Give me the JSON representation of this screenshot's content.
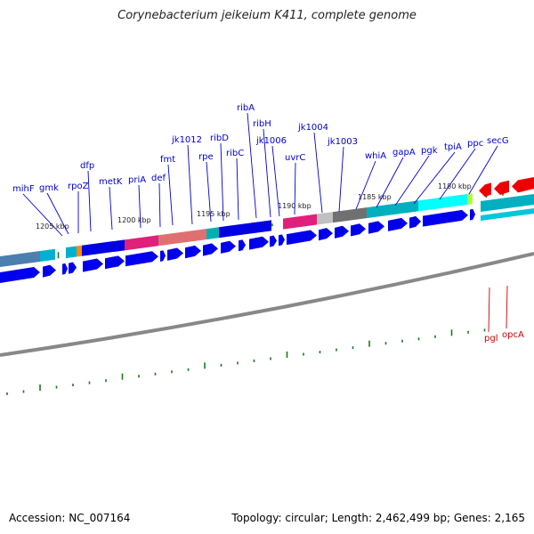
{
  "title": "Corynebacterium jeikeium K411, complete genome",
  "footer": {
    "accession": "Accession: NC_007164",
    "summary": "Topology: circular; Length: 2,462,499 bp; Genes: 2,165"
  },
  "colors": {
    "forward_label": "#0000cc",
    "reverse_label": "#cc0000",
    "tick": "#1a7a1a",
    "backbone": "#888888"
  },
  "kbp_labels": [
    "1205 kbp",
    "1200 kbp",
    "1195 kbp",
    "1190 kbp",
    "1185 kbp",
    "1180 kbp"
  ],
  "forward_gene_labels": [
    "mihF",
    "gmk",
    "rpoZ",
    "dfp",
    "metK",
    "priA",
    "def",
    "fmt",
    "jk1012",
    "rpe",
    "ribD",
    "ribC",
    "ribA",
    "ribH",
    "jk1006",
    "uvrC",
    "jk1004",
    "jk1003",
    "whiA",
    "gapA",
    "pgk",
    "tpiA",
    "ppc",
    "secG"
  ],
  "reverse_gene_labels": [
    "pgl",
    "opcA"
  ]
}
